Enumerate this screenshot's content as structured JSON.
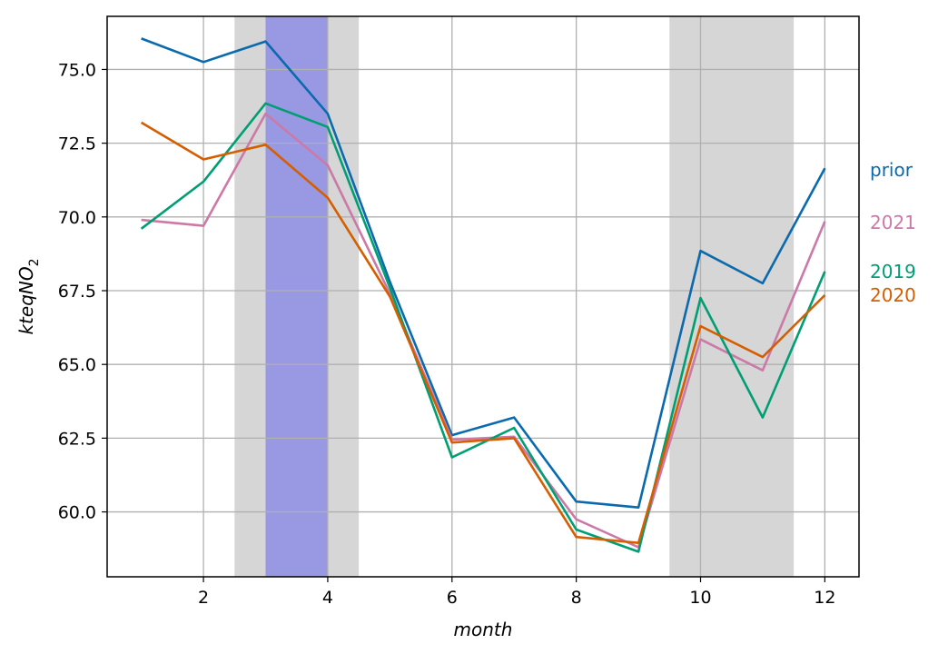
{
  "chart_data": {
    "type": "line",
    "title": "",
    "xlabel": "month",
    "ylabel": {
      "main": "kteqNO",
      "subscript": "2"
    },
    "x": [
      1,
      2,
      3,
      4,
      5,
      6,
      7,
      8,
      9,
      10,
      11,
      12
    ],
    "xlim": [
      0.45,
      12.55
    ],
    "ylim": [
      57.8,
      76.8
    ],
    "xticks": [
      2,
      4,
      6,
      8,
      10,
      12
    ],
    "yticks": [
      60.0,
      62.5,
      65.0,
      67.5,
      70.0,
      72.5,
      75.0
    ],
    "xtick_labels": [
      "2",
      "4",
      "6",
      "8",
      "10",
      "12"
    ],
    "ytick_labels": [
      "60.0",
      "62.5",
      "65.0",
      "67.5",
      "70.0",
      "72.5",
      "75.0"
    ],
    "grid": true,
    "legend": "direct labels at right end of each line",
    "shaded_spans": [
      {
        "x0": 2.5,
        "x1": 4.5,
        "color": "#d6d6d6"
      },
      {
        "x0": 3.0,
        "x1": 4.0,
        "color": "#9999e3"
      },
      {
        "x0": 9.5,
        "x1": 11.5,
        "color": "#d6d6d6"
      }
    ],
    "series": [
      {
        "name": "prior",
        "color": "#0a6aad",
        "values": [
          76.05,
          75.25,
          75.95,
          73.5,
          67.8,
          62.6,
          63.2,
          60.35,
          60.15,
          68.85,
          67.75,
          71.65
        ]
      },
      {
        "name": "2021",
        "color": "#cc79a7",
        "values": [
          69.9,
          69.7,
          73.5,
          71.75,
          67.4,
          62.45,
          62.55,
          59.75,
          58.8,
          65.85,
          64.8,
          69.85
        ]
      },
      {
        "name": "2019",
        "color": "#009e73",
        "values": [
          69.6,
          71.2,
          73.85,
          73.05,
          67.6,
          61.85,
          62.85,
          59.4,
          58.65,
          67.25,
          63.2,
          68.15
        ]
      },
      {
        "name": "2020",
        "color": "#d55e00",
        "values": [
          73.2,
          71.95,
          72.45,
          70.65,
          67.3,
          62.35,
          62.5,
          59.15,
          58.95,
          66.3,
          65.25,
          67.35
        ]
      }
    ]
  }
}
